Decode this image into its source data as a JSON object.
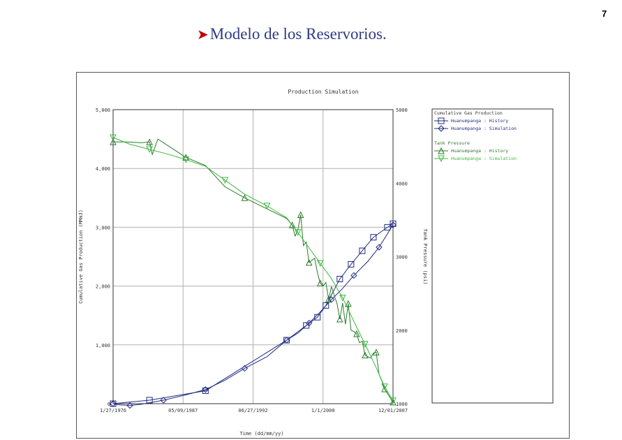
{
  "page": {
    "number": "7",
    "title": "Modelo de los Reservorios."
  },
  "colors": {
    "title": "#2e3a87",
    "bullet": "#c00000",
    "gas_series": "#1f2a80",
    "pressure_history": "#2b7a2b",
    "pressure_sim": "#3cb83c",
    "grid": "#b0b0b0"
  },
  "icons": {
    "bullet": "arrow-bullet-icon"
  },
  "chart_data": {
    "type": "line",
    "title": "Production Simulation",
    "xlabel": "Time (dd/mm/yy)",
    "ylabel": "Cumulative Gas Production (MMm3)",
    "y2label": "Tank Pressure (psi)",
    "x_tick_labels": [
      "1/27/1976",
      "05/09/1987",
      "06/27/1992",
      "1/1/2000",
      "12/01/2007"
    ],
    "y_tick_labels": [
      "0",
      "1,000",
      "2,000",
      "3,000",
      "4,000",
      "5,000"
    ],
    "y2_tick_labels": [
      "1000",
      "2000",
      "3000",
      "4000",
      "5000"
    ],
    "ylim": [
      0,
      5000
    ],
    "y2lim": [
      1000,
      5000
    ],
    "grid": true,
    "legend_position": "right",
    "legend_groups": [
      {
        "title": "Cumulative Gas Production",
        "entries": [
          {
            "label": "Huanumpanga : History",
            "marker": "square"
          },
          {
            "label": "Huanumpanga : Simulation",
            "marker": "diamond"
          }
        ]
      },
      {
        "title": "Tank Pressure",
        "entries": [
          {
            "label": "Huanumpanga : History",
            "marker": "triangle-up"
          },
          {
            "label": "Huanumpanga : Simulation",
            "marker": "triangle-down"
          }
        ]
      }
    ],
    "series": [
      {
        "name": "Cumulative Gas Production - Huanumpanga : History",
        "axis": "left",
        "marker": "square",
        "x": [
          0.0,
          0.13,
          0.33,
          0.62,
          0.69,
          0.73,
          0.76,
          0.81,
          0.85,
          0.89,
          0.93,
          0.98,
          1.0
        ],
        "y": [
          0,
          60,
          220,
          1080,
          1330,
          1470,
          1670,
          2120,
          2370,
          2600,
          2830,
          3000,
          3060
        ]
      },
      {
        "name": "Cumulative Gas Production - Huanumpanga : Simulation",
        "axis": "left",
        "marker": "diamond",
        "x": [
          0.0,
          0.02,
          0.06,
          0.1,
          0.18,
          0.26,
          0.33,
          0.4,
          0.47,
          0.55,
          0.62,
          0.66,
          0.7,
          0.74,
          0.78,
          0.82,
          0.86,
          0.91,
          0.95,
          1.0
        ],
        "y": [
          0,
          -20,
          -30,
          -10,
          60,
          150,
          240,
          400,
          600,
          800,
          1080,
          1200,
          1370,
          1560,
          1770,
          1960,
          2180,
          2420,
          2660,
          3040
        ]
      },
      {
        "name": "Tank Pressure - Huanumpanga : History",
        "axis": "right",
        "marker": "triangle-up",
        "x": [
          0.0,
          0.05,
          0.1,
          0.13,
          0.14,
          0.16,
          0.26,
          0.33,
          0.4,
          0.47,
          0.55,
          0.62,
          0.64,
          0.65,
          0.66,
          0.67,
          0.68,
          0.69,
          0.7,
          0.72,
          0.73,
          0.74,
          0.75,
          0.76,
          0.77,
          0.78,
          0.8,
          0.81,
          0.82,
          0.83,
          0.84,
          0.85,
          0.86,
          0.87,
          0.88,
          0.89,
          0.9,
          0.92,
          0.93,
          0.94,
          0.95,
          0.96,
          0.97,
          0.99,
          1.0
        ],
        "y": [
          4560,
          4560,
          4550,
          4560,
          4390,
          4600,
          4350,
          4240,
          3950,
          3800,
          3650,
          3520,
          3430,
          3280,
          3360,
          3570,
          3150,
          3200,
          2920,
          2980,
          2780,
          2640,
          2600,
          2650,
          2420,
          2590,
          2360,
          2150,
          2370,
          2080,
          2360,
          2000,
          1980,
          1950,
          1830,
          1850,
          1660,
          1620,
          1690,
          1700,
          1400,
          1310,
          1200,
          1080,
          1020
        ]
      },
      {
        "name": "Tank Pressure - Huanumpanga : Simulation",
        "axis": "right",
        "marker": "triangle-down",
        "x": [
          0.0,
          0.06,
          0.13,
          0.2,
          0.26,
          0.33,
          0.4,
          0.47,
          0.55,
          0.62,
          0.66,
          0.7,
          0.74,
          0.78,
          0.82,
          0.86,
          0.9,
          0.94,
          0.97,
          1.0
        ],
        "y": [
          4620,
          4530,
          4460,
          4390,
          4320,
          4230,
          4040,
          3850,
          3690,
          3530,
          3330,
          3120,
          2910,
          2700,
          2440,
          2120,
          1810,
          1490,
          1230,
          1040
        ]
      }
    ]
  }
}
